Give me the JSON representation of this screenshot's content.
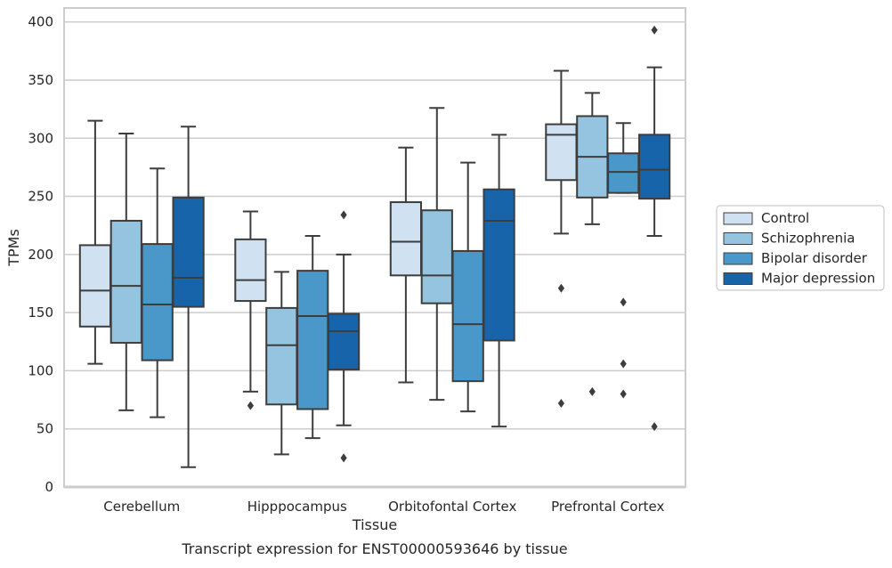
{
  "chart_data": {
    "type": "box",
    "caption": "Transcript expression for ENST00000593646 by tissue",
    "xlabel": "Tissue",
    "ylabel": "TPMs",
    "ylim": [
      0,
      412
    ],
    "yticks": [
      0,
      50,
      100,
      150,
      200,
      250,
      300,
      350,
      400
    ],
    "grid": true,
    "legend_position": "right",
    "categories": [
      "Cerebellum",
      "Hipppocampus",
      "Orbitofontal Cortex",
      "Prefrontal Cortex"
    ],
    "series": [
      {
        "name": "Control",
        "color": "#d0e1f2",
        "boxes": [
          {
            "min": 106,
            "q1": 138,
            "median": 169,
            "q3": 208,
            "max": 315,
            "outliers": []
          },
          {
            "min": 82,
            "q1": 160,
            "median": 178,
            "q3": 213,
            "max": 237,
            "outliers": [
              70
            ]
          },
          {
            "min": 90,
            "q1": 182,
            "median": 211,
            "q3": 245,
            "max": 292,
            "outliers": []
          },
          {
            "min": 218,
            "q1": 264,
            "median": 303,
            "q3": 312,
            "max": 358,
            "outliers": [
              171,
              72
            ]
          }
        ]
      },
      {
        "name": "Schizophrenia",
        "color": "#94c4df",
        "boxes": [
          {
            "min": 66,
            "q1": 124,
            "median": 173,
            "q3": 229,
            "max": 304,
            "outliers": []
          },
          {
            "min": 28,
            "q1": 71,
            "median": 122,
            "q3": 154,
            "max": 185,
            "outliers": []
          },
          {
            "min": 75,
            "q1": 158,
            "median": 182,
            "q3": 238,
            "max": 326,
            "outliers": []
          },
          {
            "min": 226,
            "q1": 249,
            "median": 284,
            "q3": 319,
            "max": 339,
            "outliers": [
              82
            ]
          }
        ]
      },
      {
        "name": "Bipolar disorder",
        "color": "#4a98c9",
        "boxes": [
          {
            "min": 60,
            "q1": 109,
            "median": 157,
            "q3": 209,
            "max": 274,
            "outliers": []
          },
          {
            "min": 42,
            "q1": 67,
            "median": 147,
            "q3": 186,
            "max": 216,
            "outliers": []
          },
          {
            "min": 65,
            "q1": 91,
            "median": 140,
            "q3": 203,
            "max": 279,
            "outliers": []
          },
          {
            "min": 253,
            "q1": 253,
            "median": 271,
            "q3": 287,
            "max": 313,
            "outliers": [
              159,
              106,
              80
            ]
          }
        ]
      },
      {
        "name": "Major depression",
        "color": "#1764ab",
        "boxes": [
          {
            "min": 17,
            "q1": 155,
            "median": 180,
            "q3": 249,
            "max": 310,
            "outliers": []
          },
          {
            "min": 53,
            "q1": 101,
            "median": 134,
            "q3": 149,
            "max": 200,
            "outliers": [
              234,
              25
            ]
          },
          {
            "min": 52,
            "q1": 126,
            "median": 229,
            "q3": 256,
            "max": 303,
            "outliers": []
          },
          {
            "min": 216,
            "q1": 248,
            "median": 273,
            "q3": 303,
            "max": 361,
            "outliers": [
              393,
              52
            ]
          }
        ]
      }
    ]
  }
}
